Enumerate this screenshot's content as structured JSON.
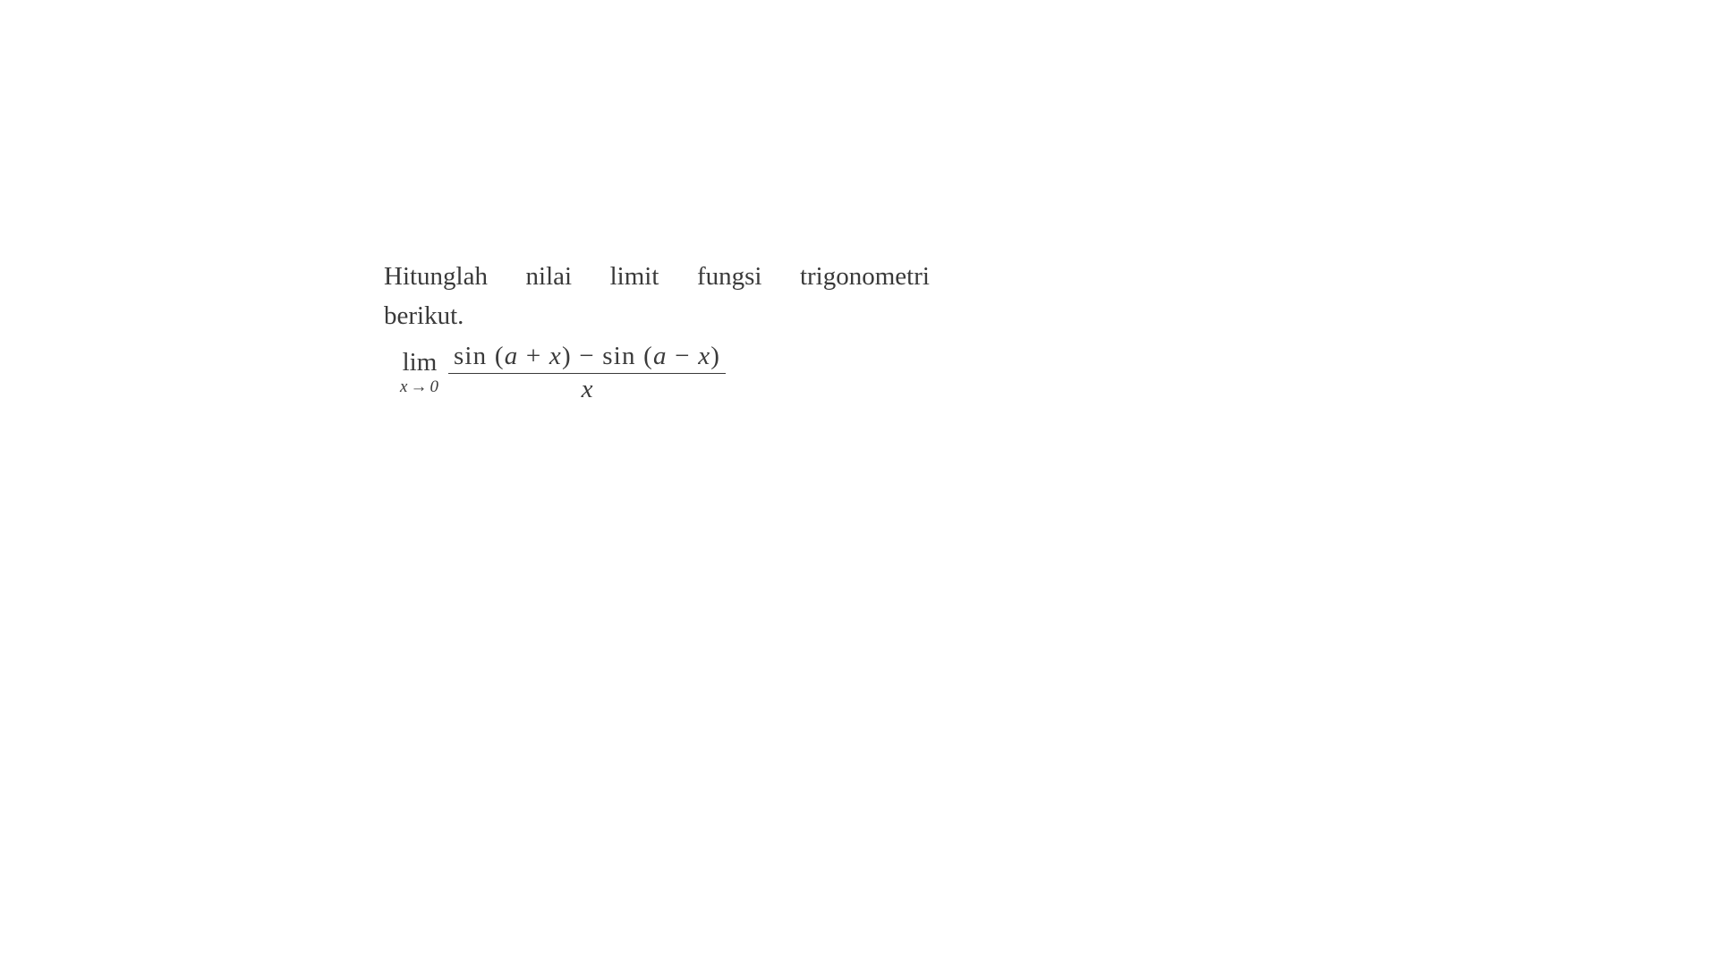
{
  "page": {
    "background_color": "#ffffff",
    "text_color": "#3a3a3a",
    "font_family": "Times New Roman",
    "instruction_fontsize": 29,
    "subscript_fontsize": 19
  },
  "instruction": {
    "word1": "Hitunglah",
    "word2": "nilai",
    "word3": "limit",
    "word4": "fungsi",
    "word5": "trigonometri",
    "line2": "berikut."
  },
  "formula": {
    "lim_label": "lim",
    "lim_var": "x",
    "lim_arrow": "→",
    "lim_target": "0",
    "numerator_part1": "sin (",
    "numerator_var_a1": "a",
    "numerator_plus": " + ",
    "numerator_var_x1": "x",
    "numerator_close1": ")",
    "numerator_minus": " − ",
    "numerator_part2": "sin (",
    "numerator_var_a2": "a",
    "numerator_minus2": " − ",
    "numerator_var_x2": "x",
    "numerator_close2": ")",
    "denominator": "x"
  }
}
